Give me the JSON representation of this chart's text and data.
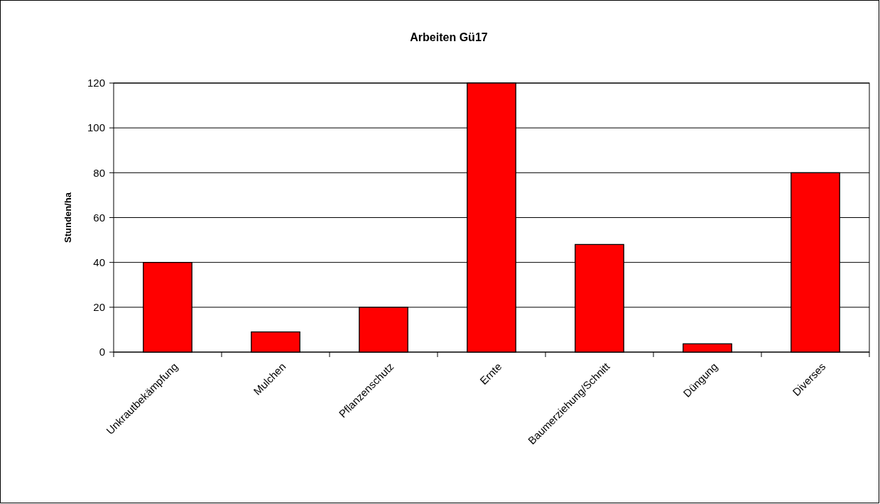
{
  "chart_data": {
    "type": "bar",
    "title": "Arbeiten Gü17",
    "ylabel": "Stunden/ha",
    "categories": [
      "Unkrautbekämpfung",
      "Mulchen",
      "Pflanzenschutz",
      "Ernte",
      "Baumerziehung/Schnitt",
      "Düngung",
      "Diverses"
    ],
    "values": [
      40,
      9,
      20,
      120,
      48,
      3.7,
      80
    ],
    "color": "#ff0000",
    "ylim": [
      0,
      120
    ],
    "yticks": [
      0,
      20,
      40,
      60,
      80,
      100,
      120
    ],
    "grid": "y"
  }
}
